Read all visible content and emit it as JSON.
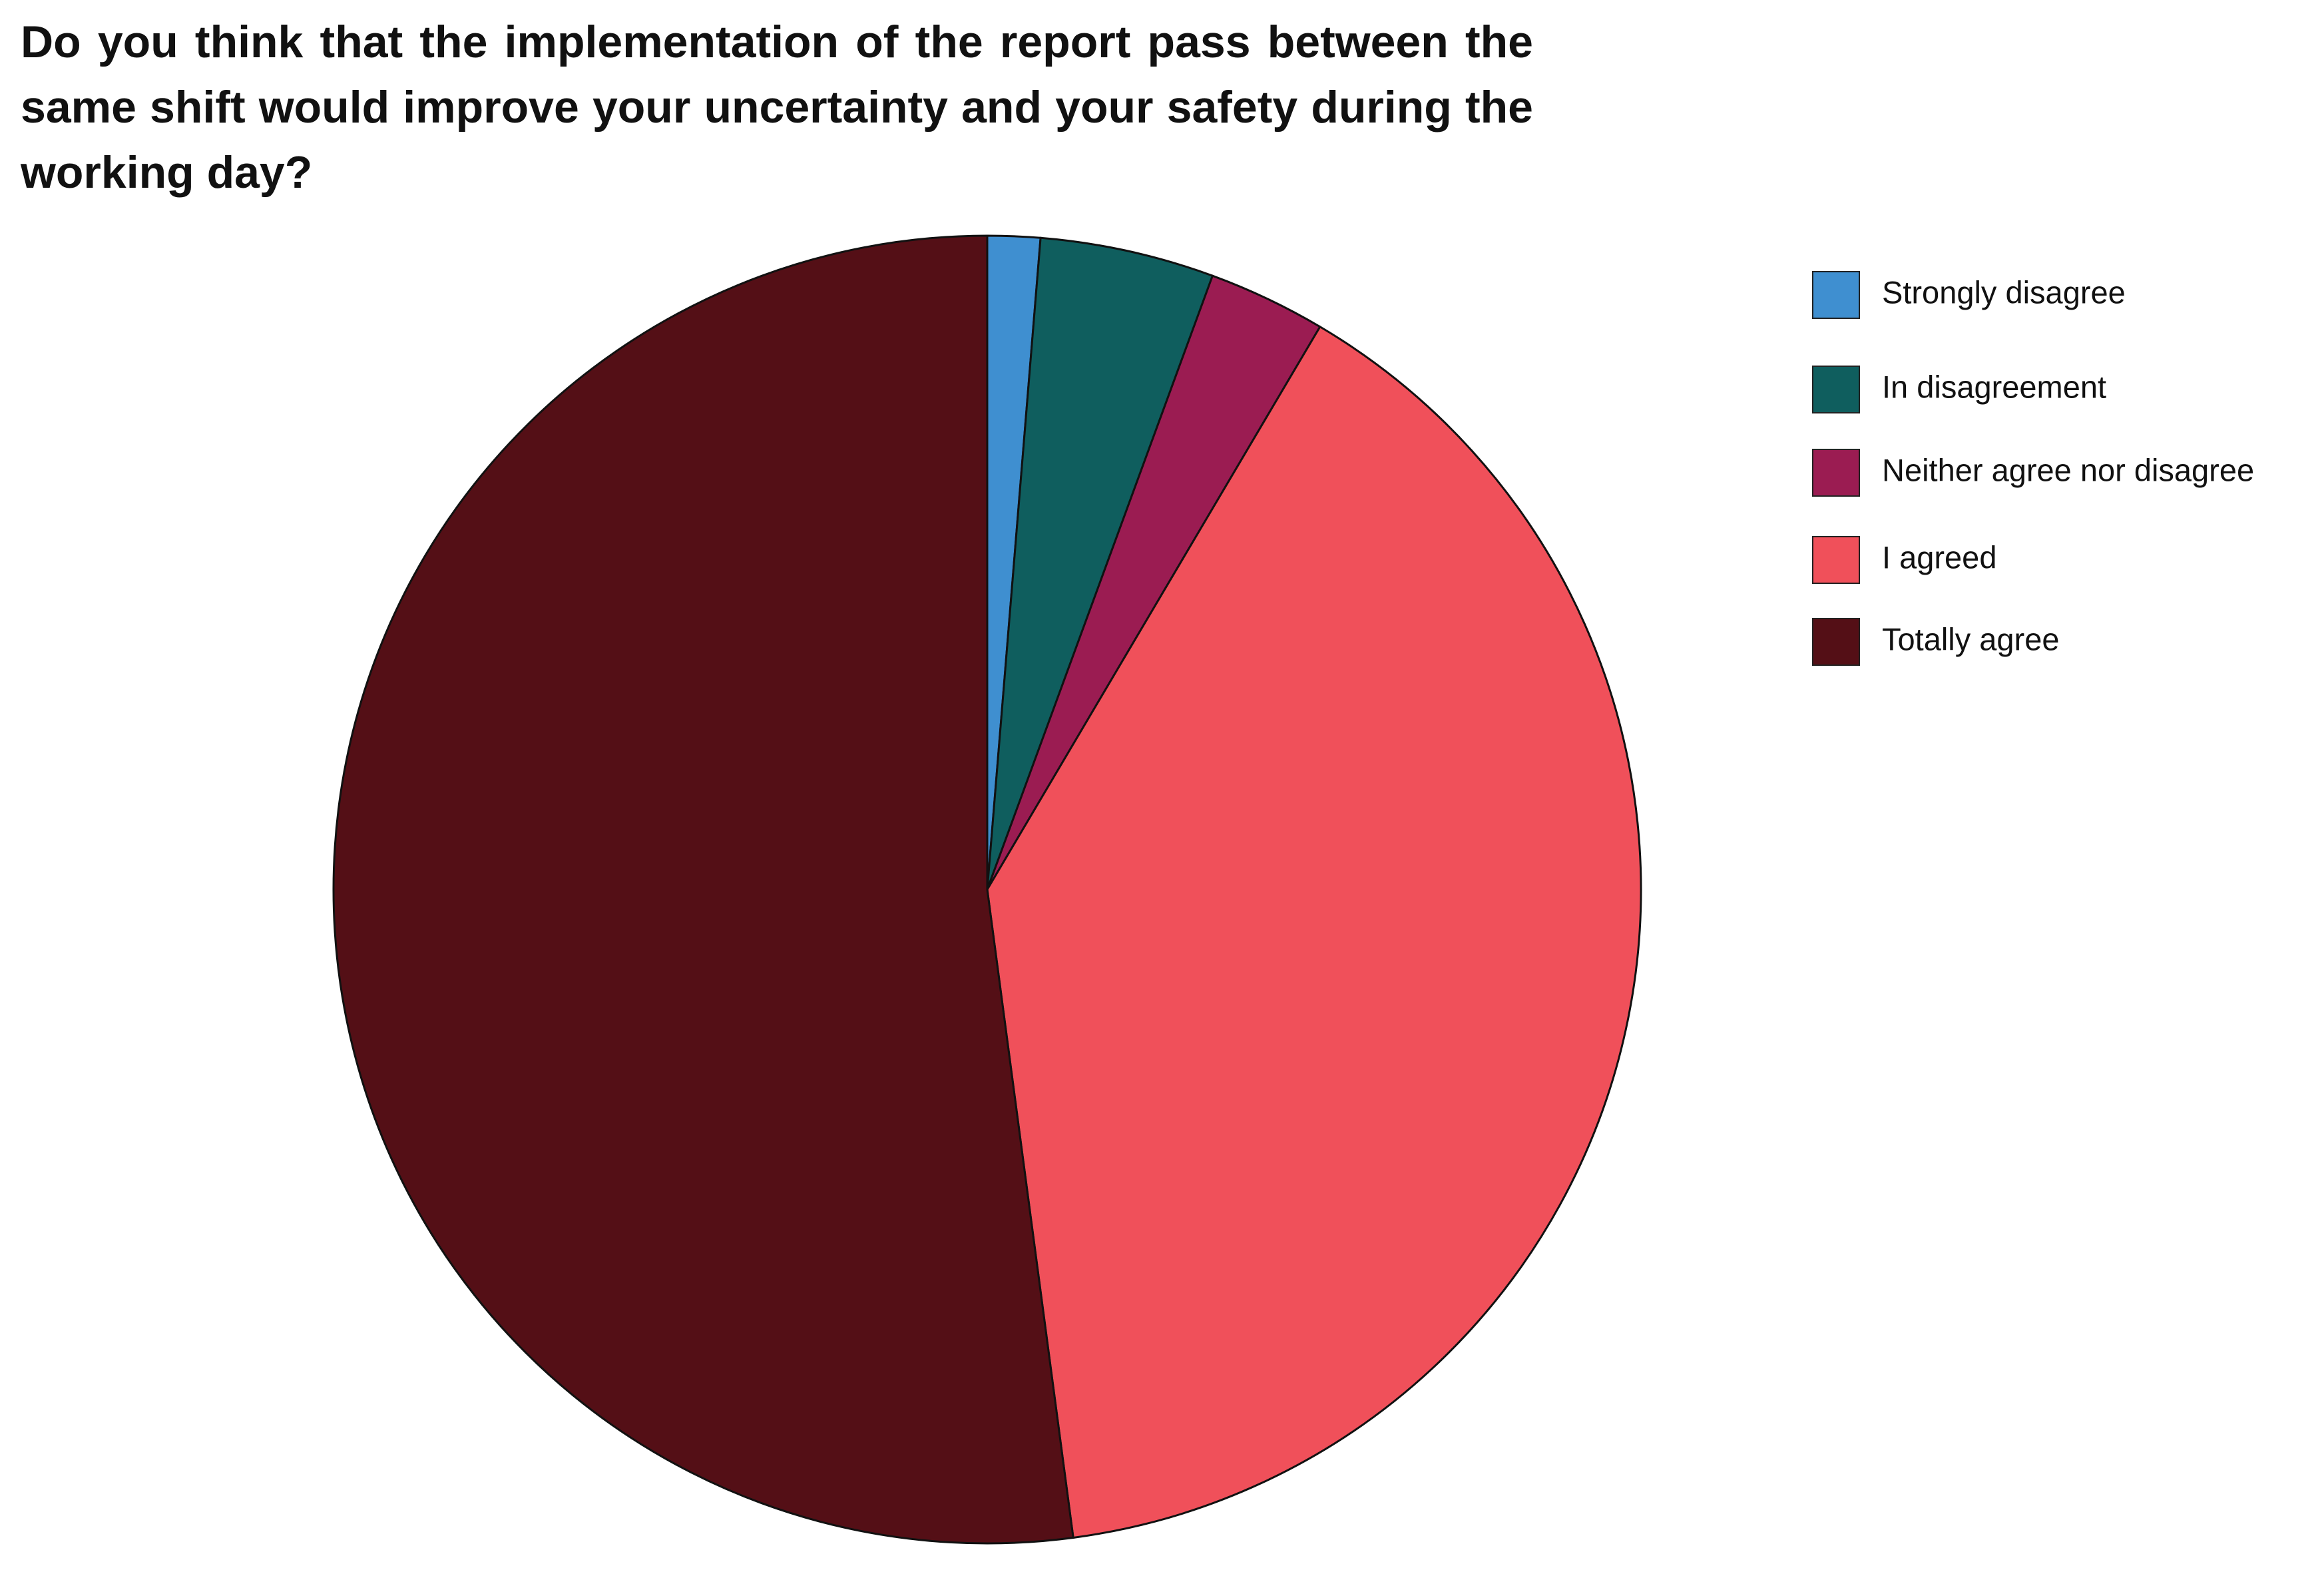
{
  "chart_data": {
    "type": "pie",
    "title": "Do you think that the implementation of the report pass between the same shift would improve your uncertainty and your safety during the working day?",
    "categories": [
      "Strongly disagree",
      "In disagreement",
      "Neither agree nor disagree",
      "I agreed",
      "Totally agree"
    ],
    "values": [
      1.3,
      4.3,
      2.9,
      39.4,
      52.1
    ],
    "colors": [
      "#3f8fd0",
      "#0f5e5e",
      "#9b1c52",
      "#f0505a",
      "#540f16"
    ],
    "legend": "right"
  }
}
